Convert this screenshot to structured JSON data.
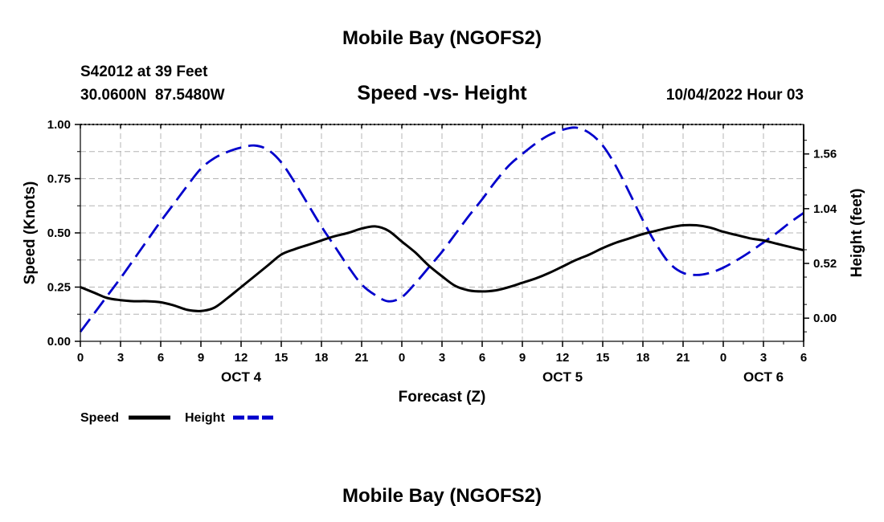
{
  "header": {
    "title": "Mobile Bay (NGOFS2)",
    "station": "S42012 at 39 Feet",
    "coords": "30.0600N  87.5480W",
    "subtitle": "Speed -vs- Height",
    "datetime": "10/04/2022 Hour 03"
  },
  "footer": {
    "title": "Mobile Bay (NGOFS2)"
  },
  "legend": {
    "speed_label": "Speed",
    "height_label": "Height"
  },
  "colors": {
    "speed": "#000000",
    "height": "#0000cc",
    "grid": "#b4b4b4"
  },
  "chart_data": {
    "type": "line",
    "xlabel": "Forecast (Z)",
    "ylabel_left": "Speed (Knots)",
    "ylabel_right": "Height (feet)",
    "x_unit": "hours",
    "xlim": [
      0,
      54
    ],
    "x_ticks": [
      0,
      3,
      6,
      9,
      12,
      15,
      18,
      21,
      24,
      27,
      30,
      33,
      36,
      39,
      42,
      45,
      48,
      51,
      54
    ],
    "x_tick_labels": [
      "0",
      "3",
      "6",
      "9",
      "12",
      "15",
      "18",
      "21",
      "0",
      "3",
      "6",
      "9",
      "12",
      "15",
      "18",
      "21",
      "0",
      "3",
      "6"
    ],
    "day_labels": [
      {
        "x": 12,
        "label": "OCT 4"
      },
      {
        "x": 36,
        "label": "OCT 5"
      },
      {
        "x": 51,
        "label": "OCT 6"
      }
    ],
    "ylim_left": [
      0,
      1
    ],
    "y_ticks_left": [
      0,
      0.25,
      0.5,
      0.75,
      1.0
    ],
    "y_tick_labels_left": [
      "0.00",
      "0.25",
      "0.50",
      "0.75",
      "1.00"
    ],
    "ylim_right": [
      -0.22,
      1.84
    ],
    "y_ticks_right": [
      0,
      0.52,
      1.04,
      1.56
    ],
    "y_tick_labels_right": [
      "0.00",
      "0.52",
      "1.04",
      "1.56"
    ],
    "grid": true,
    "series": [
      {
        "name": "Speed",
        "axis": "left",
        "style": "solid",
        "x": [
          0,
          1,
          2,
          3,
          4,
          5,
          6,
          7,
          8,
          9,
          10,
          11,
          12,
          13,
          14,
          15,
          16,
          17,
          18,
          19,
          20,
          21,
          22,
          23,
          24,
          25,
          26,
          27,
          28,
          29,
          30,
          31,
          32,
          33,
          34,
          35,
          36,
          37,
          38,
          39,
          40,
          41,
          42,
          43,
          44,
          45,
          46,
          47,
          48,
          49,
          50,
          51,
          52,
          53,
          54
        ],
        "values": [
          0.25,
          0.225,
          0.2,
          0.19,
          0.185,
          0.185,
          0.18,
          0.165,
          0.145,
          0.14,
          0.155,
          0.2,
          0.25,
          0.3,
          0.35,
          0.4,
          0.425,
          0.445,
          0.465,
          0.485,
          0.5,
          0.52,
          0.53,
          0.51,
          0.46,
          0.41,
          0.35,
          0.3,
          0.255,
          0.235,
          0.23,
          0.235,
          0.25,
          0.27,
          0.29,
          0.315,
          0.345,
          0.375,
          0.4,
          0.43,
          0.455,
          0.475,
          0.495,
          0.51,
          0.525,
          0.535,
          0.535,
          0.525,
          0.505,
          0.49,
          0.475,
          0.465,
          0.45,
          0.435,
          0.42
        ]
      },
      {
        "name": "Height",
        "axis": "right",
        "style": "dashed",
        "x": [
          0,
          1,
          2,
          3,
          4,
          5,
          6,
          7,
          8,
          9,
          10,
          11,
          12,
          13,
          14,
          15,
          16,
          17,
          18,
          19,
          20,
          21,
          22,
          23,
          24,
          25,
          26,
          27,
          28,
          29,
          30,
          31,
          32,
          33,
          34,
          35,
          36,
          37,
          38,
          39,
          40,
          41,
          42,
          43,
          44,
          45,
          46,
          47,
          48,
          49,
          50,
          51,
          52,
          53,
          54
        ],
        "values": [
          -0.13,
          0.04,
          0.21,
          0.38,
          0.56,
          0.74,
          0.92,
          1.09,
          1.26,
          1.42,
          1.52,
          1.58,
          1.62,
          1.64,
          1.6,
          1.48,
          1.29,
          1.08,
          0.87,
          0.68,
          0.49,
          0.32,
          0.22,
          0.16,
          0.2,
          0.33,
          0.48,
          0.63,
          0.8,
          0.97,
          1.13,
          1.3,
          1.45,
          1.56,
          1.66,
          1.74,
          1.79,
          1.81,
          1.76,
          1.64,
          1.44,
          1.19,
          0.93,
          0.7,
          0.52,
          0.43,
          0.41,
          0.43,
          0.48,
          0.55,
          0.63,
          0.72,
          0.81,
          0.91,
          1.0
        ]
      }
    ]
  }
}
